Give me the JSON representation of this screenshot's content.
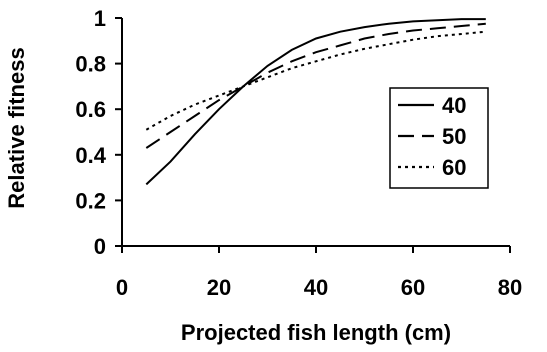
{
  "chart_data": {
    "type": "line",
    "xlabel": "Projected fish length (cm)",
    "ylabel": "Relative fitness",
    "xlim": [
      0,
      80
    ],
    "ylim": [
      0,
      1
    ],
    "xticks": [
      0,
      20,
      40,
      60,
      80
    ],
    "yticks": [
      0,
      0.2,
      0.4,
      0.6,
      0.8,
      1
    ],
    "ytick_labels": [
      "0",
      "0.2",
      "0.4",
      "0.6",
      "0.8",
      "1"
    ],
    "grid": false,
    "legend_placement": "right",
    "series": [
      {
        "name": "40",
        "style": "solid",
        "color": "#000000",
        "x": [
          5,
          10,
          15,
          20,
          25,
          30,
          35,
          40,
          45,
          50,
          55,
          60,
          65,
          70,
          75
        ],
        "y": [
          0.27,
          0.37,
          0.49,
          0.6,
          0.7,
          0.79,
          0.86,
          0.91,
          0.94,
          0.96,
          0.975,
          0.985,
          0.99,
          0.995,
          0.995
        ]
      },
      {
        "name": "50",
        "style": "dashed",
        "color": "#000000",
        "x": [
          5,
          10,
          15,
          20,
          25,
          30,
          35,
          40,
          45,
          50,
          55,
          60,
          65,
          70,
          75
        ],
        "y": [
          0.43,
          0.5,
          0.57,
          0.64,
          0.7,
          0.76,
          0.81,
          0.85,
          0.88,
          0.91,
          0.93,
          0.945,
          0.955,
          0.965,
          0.975
        ]
      },
      {
        "name": "60",
        "style": "dotted",
        "color": "#000000",
        "x": [
          5,
          10,
          15,
          20,
          25,
          30,
          35,
          40,
          45,
          50,
          55,
          60,
          65,
          70,
          75
        ],
        "y": [
          0.51,
          0.57,
          0.62,
          0.66,
          0.7,
          0.74,
          0.78,
          0.81,
          0.84,
          0.865,
          0.885,
          0.905,
          0.92,
          0.93,
          0.94
        ]
      }
    ]
  }
}
